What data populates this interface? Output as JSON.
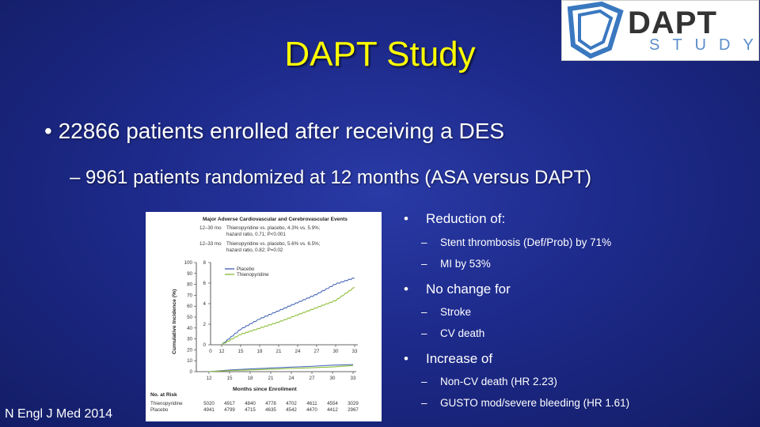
{
  "slide": {
    "title": "DAPT Study",
    "logo": {
      "main": "DAPT",
      "sub": "STUDY"
    },
    "bullet1": "22866 patients enrolled after receiving a DES",
    "bullet2": "– 9961 patients randomized at 12 months (ASA versus DAPT)",
    "citation": "N Engl J Med 2014",
    "right_list": {
      "bullet_glyph": "•",
      "dash_glyph": "–",
      "groups": [
        {
          "label": "Reduction of:",
          "items": [
            "Stent thrombosis (Def/Prob) by 71%",
            "MI by 53%"
          ]
        },
        {
          "label": "No change for",
          "items": [
            "Stroke",
            "CV death"
          ]
        },
        {
          "label": "Increase of",
          "items": [
            "Non-CV death (HR 2.23)",
            "GUSTO mod/severe bleeding (HR 1.61)"
          ]
        }
      ]
    }
  },
  "chart_data": {
    "type": "line",
    "title": "Major Adverse Cardiovascular and Cerebrovascular Events",
    "annotations": [
      {
        "range": "12–30 mo",
        "text1": "Thienopyridine vs. placebo, 4.3% vs. 5.9%;",
        "text2": "hazard ratio, 0.71; P<0.001"
      },
      {
        "range": "12–33 mo",
        "text1": "Thienopyridine vs. placebo, 5.6% vs. 6.5%;",
        "text2": "hazard ratio, 0.82; P=0.02"
      }
    ],
    "xlabel": "Months since Enrollment",
    "ylabel": "Cumulative Incidence (%)",
    "x_ticks": [
      "12",
      "15",
      "18",
      "21",
      "24",
      "27",
      "30",
      "33"
    ],
    "x_ticks_inset": [
      "0",
      "12",
      "15",
      "18",
      "21",
      "24",
      "27",
      "30",
      "33"
    ],
    "y_ticks": [
      "0",
      "10",
      "20",
      "30",
      "40",
      "50",
      "60",
      "70",
      "80",
      "90",
      "100"
    ],
    "inset_y_ticks": [
      "0",
      "2",
      "4",
      "6",
      "8"
    ],
    "xlim": [
      12,
      33
    ],
    "ylim": [
      0,
      100
    ],
    "inset_ylim": [
      0,
      8
    ],
    "series": [
      {
        "name": "Placebo",
        "color": "#4a6ab8",
        "x": [
          12,
          15,
          18,
          21,
          24,
          27,
          30,
          33
        ],
        "y": [
          0,
          1.5,
          2.5,
          3.3,
          4.1,
          4.9,
          5.9,
          6.5
        ]
      },
      {
        "name": "Thienopyridine",
        "color": "#8fbf3c",
        "x": [
          12,
          15,
          18,
          21,
          24,
          27,
          30,
          33
        ],
        "y": [
          0,
          1.0,
          1.6,
          2.2,
          2.9,
          3.6,
          4.3,
          5.6
        ]
      }
    ],
    "risk_table": {
      "header": "No. at Risk",
      "rows": [
        {
          "label": "Thienopyridine",
          "values": [
            "5020",
            "4917",
            "4840",
            "4778",
            "4702",
            "4611",
            "4554",
            "3029"
          ]
        },
        {
          "label": "Placebo",
          "values": [
            "4941",
            "4799",
            "4715",
            "4635",
            "4542",
            "4470",
            "4412",
            "2967"
          ]
        }
      ]
    }
  }
}
